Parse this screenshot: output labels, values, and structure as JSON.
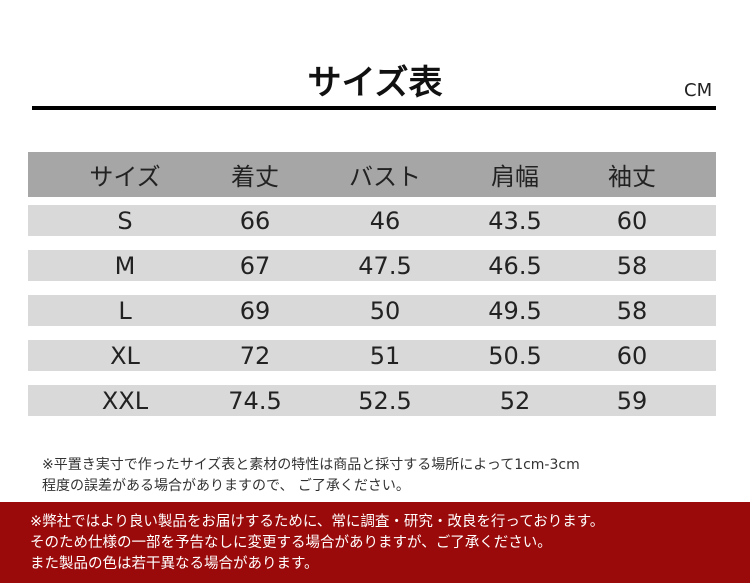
{
  "title": "サイズ表",
  "unit": "CM",
  "table": {
    "headers": [
      "サイズ",
      "着丈",
      "バスト",
      "肩幅",
      "袖丈"
    ],
    "rows": [
      [
        "S",
        "66",
        "46",
        "43.5",
        "60"
      ],
      [
        "M",
        "67",
        "47.5",
        "46.5",
        "58"
      ],
      [
        "L",
        "69",
        "50",
        "49.5",
        "58"
      ],
      [
        "XL",
        "72",
        "51",
        "50.5",
        "60"
      ],
      [
        "XXL",
        "74.5",
        "52.5",
        "52",
        "59"
      ]
    ]
  },
  "note": [
    "※平置き実寸で作ったサイズ表と素材の特性は商品と採寸する場所によって1cm-3cm",
    "程度の誤差がある場合がありますので、 ご了承ください。"
  ],
  "notice": [
    "※弊社ではより良い製品をお届けするために、常に調査・研究・改良を行っております。",
    "そのため仕様の一部を予告なしに変更する場合がありますが、ご了承ください。",
    "また製品の色は若干異なる場合があります。"
  ],
  "colors": {
    "header_bg": "#a6a6a6",
    "row_bg": "#d9d9d9",
    "notice_bg": "#9b0a0a"
  }
}
